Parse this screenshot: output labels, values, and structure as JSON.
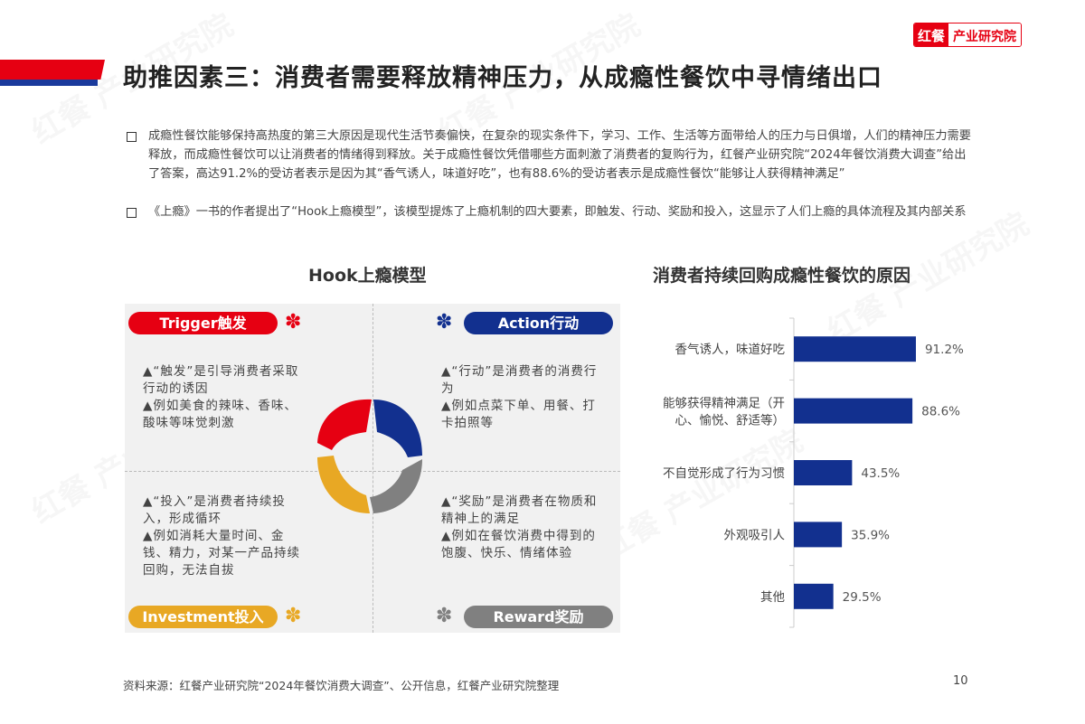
{
  "header": {
    "title": "助推因素三：消费者需要释放精神压力，从成瘾性餐饮中寻情绪出口",
    "logo_mark": "红餐",
    "logo_text": "产业研究院",
    "accent_red": "#e60012",
    "accent_blue": "#1a3a9c"
  },
  "bullets": [
    "成瘾性餐饮能够保持高热度的第三大原因是现代生活节奏偏快，在复杂的现实条件下，学习、工作、生活等方面带给人的压力与日俱增，人们的精神压力需要释放，而成瘾性餐饮可以让消费者的情绪得到释放。关于成瘾性餐饮凭借哪些方面刺激了消费者的复购行为，红餐产业研究院“2024年餐饮消费大调查”给出了答案，高达91.2%的受访者表示是因为其“香气诱人，味道好吃”，也有88.6%的受访者表示是成瘾性餐饮“能够让人获得精神满足”",
    "《上瘾》一书的作者提出了“Hook上瘾模型”，该模型提炼了上瘾机制的四大要素，即触发、行动、奖励和投入，这显示了人们上瘾的具体流程及其内部关系"
  ],
  "hook": {
    "title": "Hook上瘾模型",
    "quadrants": [
      {
        "label": "Trigger触发",
        "color": "#e60012",
        "text": "▲“触发”是引导消费者采取行动的诱因\n▲例如美食的辣味、香味、酸味等味觉刺激"
      },
      {
        "label": "Action行动",
        "color": "#12308f",
        "text": "▲“行动”是消费者的消费行为\n▲例如点菜下单、用餐、打卡拍照等"
      },
      {
        "label": "Investment投入",
        "color": "#e8a824",
        "text": "▲“投入”是消费者持续投入，形成循环\n▲例如消耗大量时间、金钱、精力，对某一产品持续回购，无法自拔"
      },
      {
        "label": "Reward奖励",
        "color": "#808080",
        "text": "▲“奖励”是消费者在物质和精神上的满足\n▲例如在餐饮消费中得到的饱腹、快乐、情绪体验"
      }
    ]
  },
  "chart_data": {
    "type": "bar",
    "orientation": "horizontal",
    "title": "消费者持续回购成瘾性餐饮的原因",
    "categories": [
      "香气诱人，味道好吃",
      "能够获得精神满足（开心、愉悦、舒适等）",
      "不自觉形成了行为习惯",
      "外观吸引人",
      "其他"
    ],
    "values": [
      91.2,
      88.6,
      43.5,
      35.9,
      29.5
    ],
    "value_labels": [
      "91.2%",
      "88.6%",
      "43.5%",
      "35.9%",
      "29.5%"
    ],
    "unit": "%",
    "bar_color": "#12308f",
    "grid": false
  },
  "footer": {
    "source": "资料来源：红餐产业研究院“2024年餐饮消费大调查”、公开信息，红餐产业研究院整理",
    "page": "10"
  }
}
